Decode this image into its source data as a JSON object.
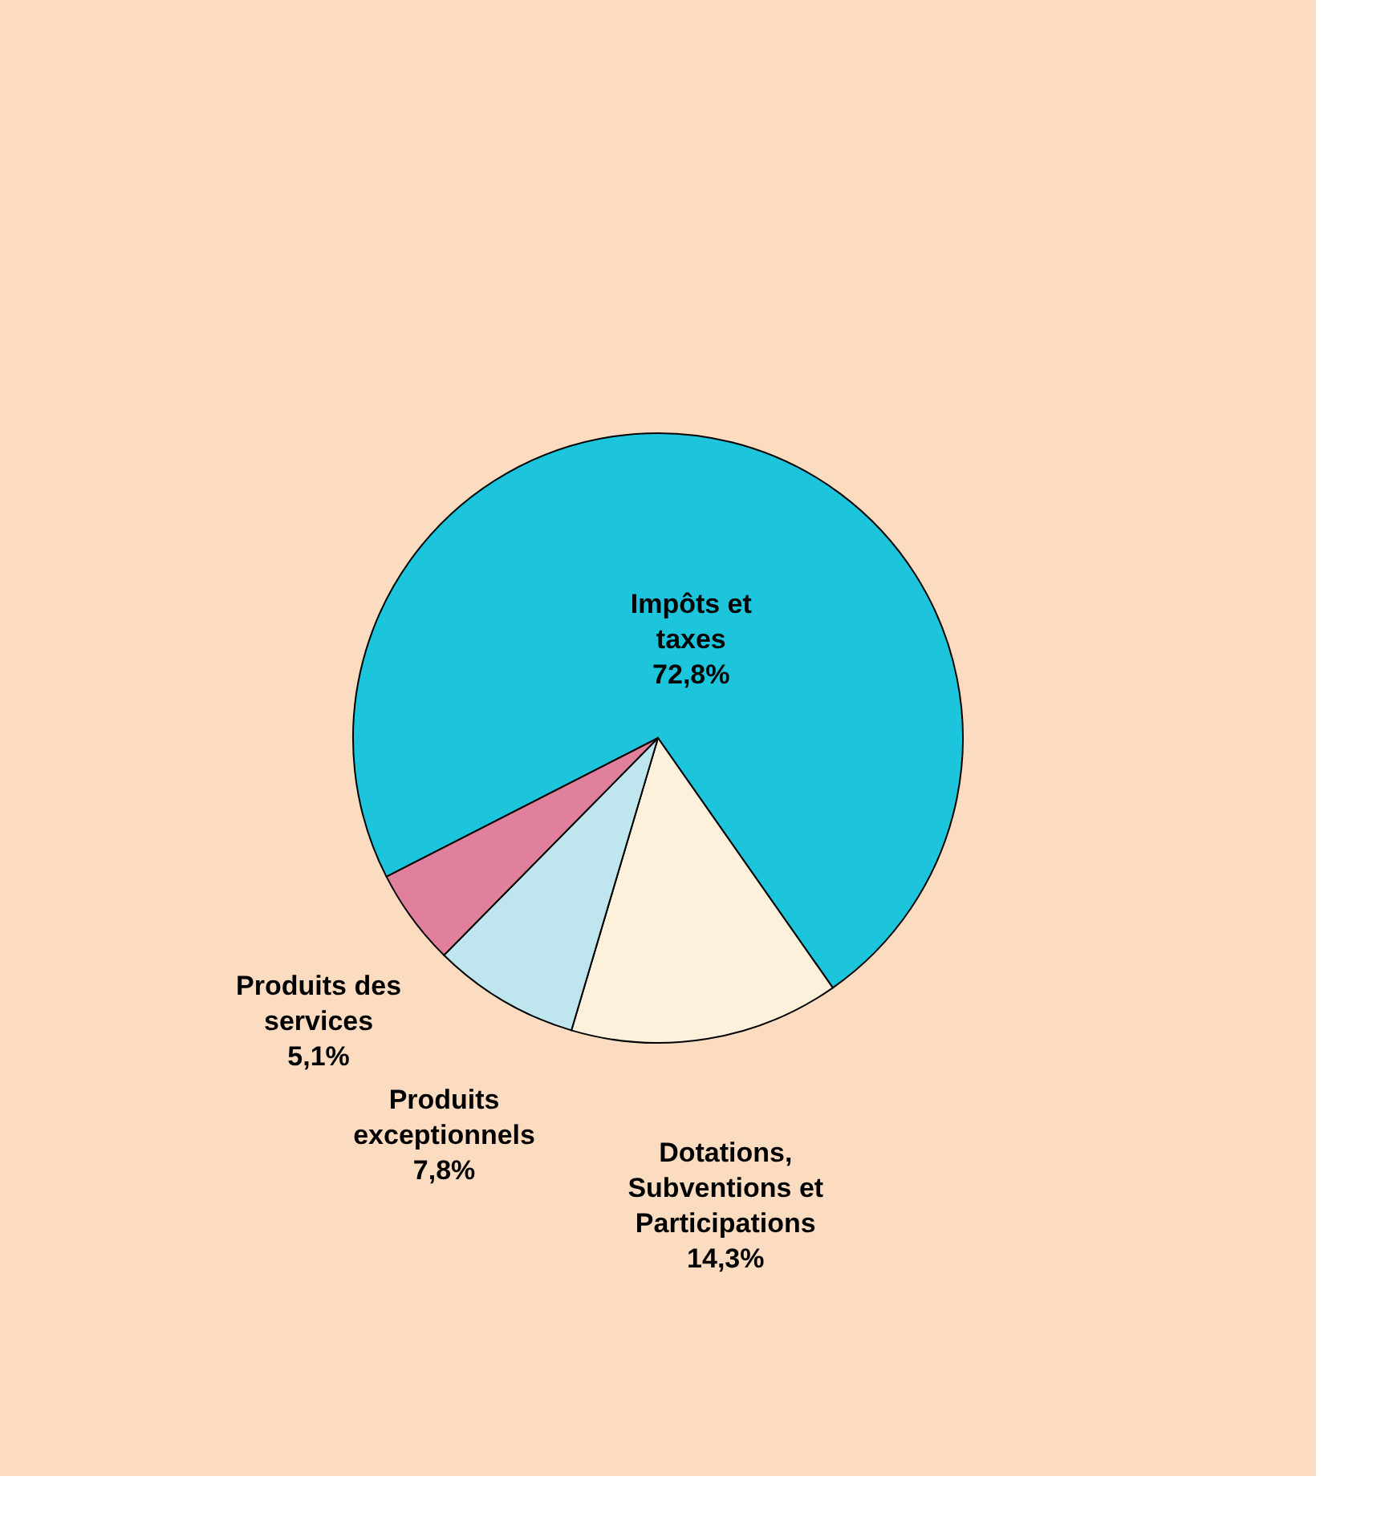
{
  "chart_data": {
    "type": "pie",
    "categories": [
      "Impôts et taxes",
      "Dotations, Subventions et Participations",
      "Produits exceptionnels",
      "Produits des services"
    ],
    "values": [
      72.8,
      14.3,
      7.8,
      5.1
    ],
    "value_labels": [
      "72,8%",
      "14,3%",
      "7,8%",
      "5,1%"
    ],
    "colors": [
      "#1cc4dc",
      "#fdf1dc",
      "#bfe6ee",
      "#e0809c"
    ],
    "legend": false
  }
}
